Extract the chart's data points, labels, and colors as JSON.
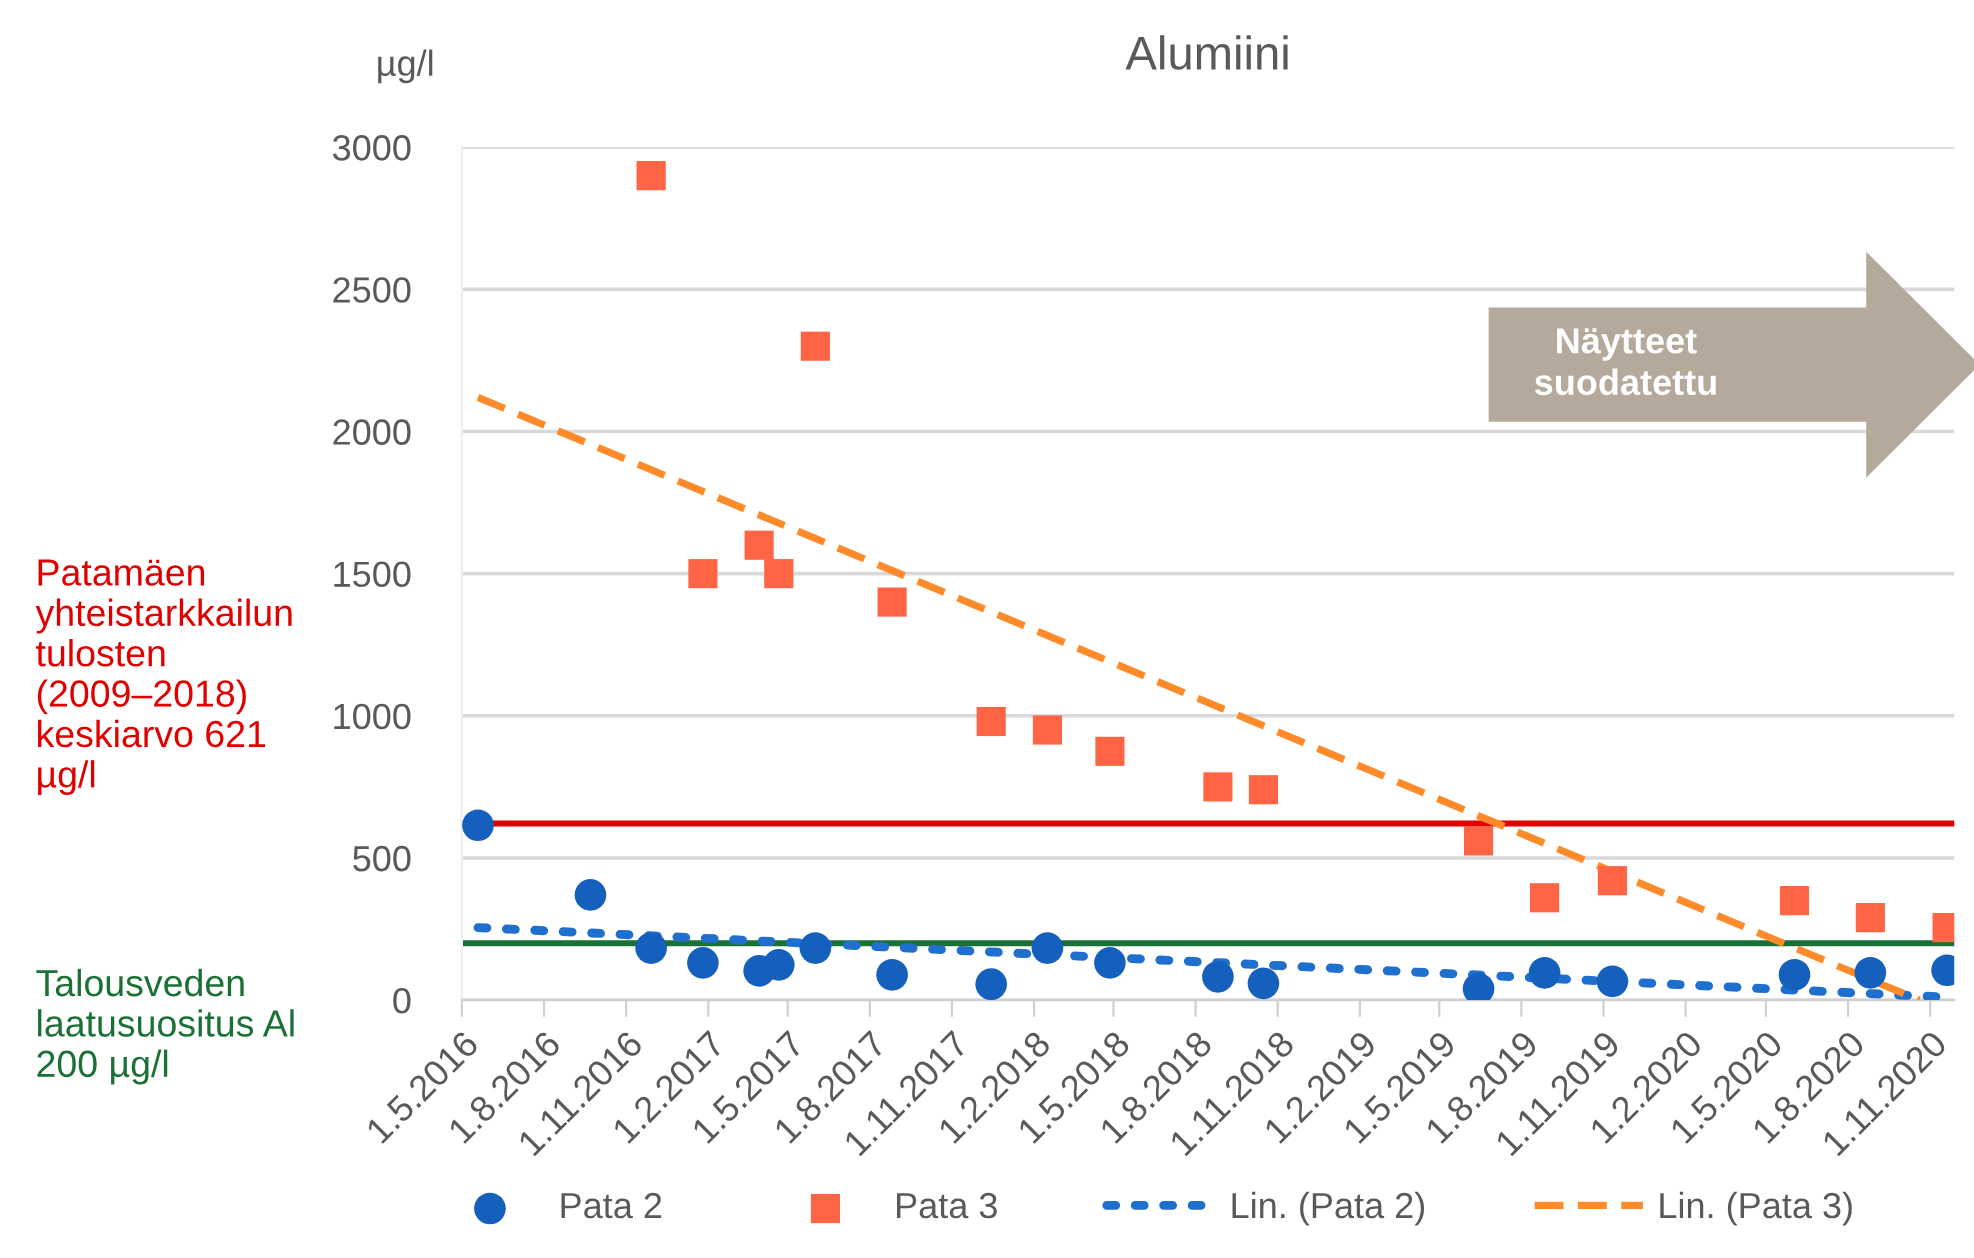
{
  "chart_data": {
    "type": "scatter",
    "title": "Alumiini",
    "ylabel": "µg/l",
    "xlim": [
      "2016-05-01",
      "2020-11-28"
    ],
    "ylim": [
      0,
      3000
    ],
    "yticks": [
      0,
      500,
      1000,
      1500,
      2000,
      2500,
      3000
    ],
    "xticks": [
      {
        "value": "2016-05-01",
        "label": "1.5.2016"
      },
      {
        "value": "2016-08-01",
        "label": "1.8.2016"
      },
      {
        "value": "2016-11-01",
        "label": "1.11.2016"
      },
      {
        "value": "2017-02-01",
        "label": "1.2.2017"
      },
      {
        "value": "2017-05-01",
        "label": "1.5.2017"
      },
      {
        "value": "2017-08-01",
        "label": "1.8.2017"
      },
      {
        "value": "2017-11-01",
        "label": "1.11.2017"
      },
      {
        "value": "2018-02-01",
        "label": "1.2.2018"
      },
      {
        "value": "2018-05-01",
        "label": "1.5.2018"
      },
      {
        "value": "2018-08-01",
        "label": "1.8.2018"
      },
      {
        "value": "2018-11-01",
        "label": "1.11.2018"
      },
      {
        "value": "2019-02-01",
        "label": "1.2.2019"
      },
      {
        "value": "2019-05-01",
        "label": "1.5.2019"
      },
      {
        "value": "2019-08-01",
        "label": "1.8.2019"
      },
      {
        "value": "2019-11-01",
        "label": "1.11.2019"
      },
      {
        "value": "2020-02-01",
        "label": "1.2.2020"
      },
      {
        "value": "2020-05-01",
        "label": "1.5.2020"
      },
      {
        "value": "2020-08-01",
        "label": "1.8.2020"
      },
      {
        "value": "2020-11-01",
        "label": "1.11.2020"
      }
    ],
    "grid": "y",
    "legend": "bottom",
    "series": [
      {
        "name": "Pata 2",
        "type": "scatter",
        "marker": "circle",
        "color": "#1560bd",
        "x": [
          "2016-05-19",
          "2016-09-22",
          "2016-11-29",
          "2017-01-26",
          "2017-03-30",
          "2017-04-21",
          "2017-06-01",
          "2017-08-26",
          "2017-12-15",
          "2018-02-16",
          "2018-04-27",
          "2018-08-26",
          "2018-10-16",
          "2019-06-14",
          "2019-08-27",
          "2019-11-11",
          "2020-06-02",
          "2020-08-26",
          "2020-11-20"
        ],
        "values": [
          615,
          370,
          183,
          131,
          103,
          124,
          183,
          89,
          56,
          183,
          131,
          82,
          59,
          40,
          96,
          66,
          89,
          96,
          105
        ]
      },
      {
        "name": "Pata 3",
        "type": "scatter",
        "marker": "square",
        "color": "#ff6445",
        "x": [
          "2016-11-29",
          "2017-01-26",
          "2017-03-30",
          "2017-04-21",
          "2017-06-01",
          "2017-08-26",
          "2017-12-15",
          "2018-02-16",
          "2018-04-27",
          "2018-08-26",
          "2018-10-16",
          "2019-06-14",
          "2019-08-27",
          "2019-11-11",
          "2020-06-02",
          "2020-08-26",
          "2020-11-20"
        ],
        "values": [
          2900,
          1500,
          1600,
          1500,
          2300,
          1400,
          980,
          950,
          875,
          750,
          740,
          560,
          360,
          420,
          350,
          290,
          255
        ]
      },
      {
        "name": "Lin. (Pata 2)",
        "type": "line",
        "line_style": "dotted",
        "color": "#1f6fcf",
        "x": [
          "2016-05-19",
          "2020-11-20"
        ],
        "values": [
          255,
          10
        ]
      },
      {
        "name": "Lin. (Pata 3)",
        "type": "line",
        "line_style": "dashed",
        "color": "#ff8a2a",
        "x": [
          "2016-05-19",
          "2020-10-20"
        ],
        "values": [
          2120,
          0
        ]
      }
    ],
    "ref_lines": [
      {
        "axis": "y",
        "value": 621,
        "label": "Patamäen yhteistarkkailun tulosten (2009–2018) keskiarvo 621 µg/l",
        "color": "#e00000"
      },
      {
        "axis": "y",
        "value": 200,
        "label": "Talousveden laatusuositus Al 200 µg/l",
        "color": "#1a7035"
      }
    ],
    "annotations": [
      "Näytteet suodatettu"
    ]
  }
}
